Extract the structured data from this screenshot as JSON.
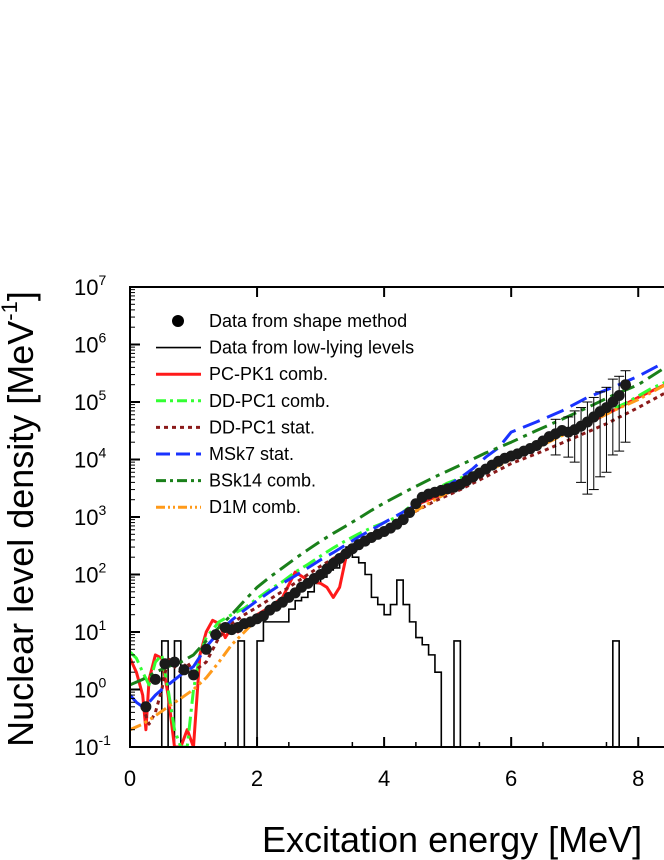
{
  "chart_data": {
    "type": "scatter",
    "title": "",
    "xlabel": "Excitation energy [MeV]",
    "ylabel": "Nuclear level density [MeV",
    "ylabel_sup": "-1",
    "ylabel_close": "]",
    "xlim": [
      0,
      8.5
    ],
    "ylim_exp": [
      -1,
      7
    ],
    "yscale": "log",
    "x_ticks": [
      {
        "v": 0,
        "label": "0"
      },
      {
        "v": 2,
        "label": "2"
      },
      {
        "v": 4,
        "label": "4"
      },
      {
        "v": 6,
        "label": "6"
      },
      {
        "v": 8,
        "label": "8"
      }
    ],
    "y_ticks": [
      {
        "e": -1,
        "base": "10",
        "exp": "-1"
      },
      {
        "e": 0,
        "base": "10",
        "exp": "0"
      },
      {
        "e": 1,
        "base": "10",
        "exp": "1"
      },
      {
        "e": 2,
        "base": "10",
        "exp": "2"
      },
      {
        "e": 3,
        "base": "10",
        "exp": "3"
      },
      {
        "e": 4,
        "base": "10",
        "exp": "4"
      },
      {
        "e": 5,
        "base": "10",
        "exp": "5"
      },
      {
        "e": 6,
        "base": "10",
        "exp": "6"
      },
      {
        "e": 7,
        "base": "10",
        "exp": "7"
      }
    ],
    "legend": {
      "position": "top-left",
      "entries": [
        {
          "label": "Data from shape method",
          "style": "marker",
          "color": "#000000"
        },
        {
          "label": "Data from low-lying levels",
          "style": "solid-thin",
          "color": "#000000"
        },
        {
          "label": "PC-PK1 comb.",
          "style": "solid",
          "color": "#ff1a1a"
        },
        {
          "label": "DD-PC1 comb.",
          "style": "dashdot",
          "color": "#33ff33"
        },
        {
          "label": "DD-PC1 stat.",
          "style": "dot",
          "color": "#8b1a1a"
        },
        {
          "label": "MSk7 stat.",
          "style": "dash",
          "color": "#1a33ff"
        },
        {
          "label": "BSk14 comb.",
          "style": "dashdot",
          "color": "#1a801a"
        },
        {
          "label": "D1M comb.",
          "style": "dashdotdot",
          "color": "#ff9a1a"
        }
      ]
    },
    "points": [
      {
        "x": 0.25,
        "y": 0.5
      },
      {
        "x": 0.4,
        "y": 1.5
      },
      {
        "x": 0.55,
        "y": 2.8
      },
      {
        "x": 0.7,
        "y": 3.0
      },
      {
        "x": 0.85,
        "y": 2.2
      },
      {
        "x": 1.0,
        "y": 1.8
      },
      {
        "x": 1.2,
        "y": 5
      },
      {
        "x": 1.35,
        "y": 9
      },
      {
        "x": 1.5,
        "y": 12
      },
      {
        "x": 1.6,
        "y": 11
      },
      {
        "x": 1.7,
        "y": 12
      },
      {
        "x": 1.8,
        "y": 14
      },
      {
        "x": 1.9,
        "y": 15
      },
      {
        "x": 2.0,
        "y": 17
      },
      {
        "x": 2.1,
        "y": 19
      },
      {
        "x": 2.2,
        "y": 24
      },
      {
        "x": 2.3,
        "y": 28
      },
      {
        "x": 2.4,
        "y": 33
      },
      {
        "x": 2.5,
        "y": 40
      },
      {
        "x": 2.6,
        "y": 48
      },
      {
        "x": 2.7,
        "y": 60
      },
      {
        "x": 2.8,
        "y": 70
      },
      {
        "x": 2.9,
        "y": 85
      },
      {
        "x": 3.0,
        "y": 100
      },
      {
        "x": 3.1,
        "y": 125
      },
      {
        "x": 3.2,
        "y": 155
      },
      {
        "x": 3.3,
        "y": 190
      },
      {
        "x": 3.4,
        "y": 230
      },
      {
        "x": 3.5,
        "y": 280
      },
      {
        "x": 3.6,
        "y": 330
      },
      {
        "x": 3.7,
        "y": 380
      },
      {
        "x": 3.8,
        "y": 440
      },
      {
        "x": 3.9,
        "y": 500
      },
      {
        "x": 4.0,
        "y": 560
      },
      {
        "x": 4.1,
        "y": 640
      },
      {
        "x": 4.2,
        "y": 750
      },
      {
        "x": 4.3,
        "y": 900
      },
      {
        "x": 4.4,
        "y": 1200
      },
      {
        "x": 4.5,
        "y": 1700
      },
      {
        "x": 4.6,
        "y": 2200
      },
      {
        "x": 4.7,
        "y": 2500
      },
      {
        "x": 4.8,
        "y": 2700
      },
      {
        "x": 4.9,
        "y": 2900
      },
      {
        "x": 5.0,
        "y": 3100
      },
      {
        "x": 5.1,
        "y": 3300
      },
      {
        "x": 5.2,
        "y": 3700
      },
      {
        "x": 5.3,
        "y": 4300
      },
      {
        "x": 5.4,
        "y": 5000
      },
      {
        "x": 5.5,
        "y": 5800
      },
      {
        "x": 5.6,
        "y": 6800
      },
      {
        "x": 5.7,
        "y": 8000
      },
      {
        "x": 5.8,
        "y": 9300
      },
      {
        "x": 5.9,
        "y": 10500
      },
      {
        "x": 6.0,
        "y": 11500
      },
      {
        "x": 6.1,
        "y": 12500
      },
      {
        "x": 6.2,
        "y": 14000
      },
      {
        "x": 6.3,
        "y": 15500
      },
      {
        "x": 6.4,
        "y": 17500
      },
      {
        "x": 6.5,
        "y": 21000
      },
      {
        "x": 6.6,
        "y": 25000
      },
      {
        "x": 6.7,
        "y": 28000
      },
      {
        "x": 6.8,
        "y": 32000
      },
      {
        "x": 6.9,
        "y": 30000
      },
      {
        "x": 7.0,
        "y": 33000
      },
      {
        "x": 7.1,
        "y": 38000
      },
      {
        "x": 7.2,
        "y": 45000
      },
      {
        "x": 7.3,
        "y": 55000
      },
      {
        "x": 7.4,
        "y": 68000
      },
      {
        "x": 7.5,
        "y": 80000
      },
      {
        "x": 7.6,
        "y": 100000
      },
      {
        "x": 7.7,
        "y": 130000
      },
      {
        "x": 7.8,
        "y": 200000
      }
    ],
    "errorbars": [
      {
        "x": 6.7,
        "lo": 12000,
        "hi": 50000
      },
      {
        "x": 6.9,
        "lo": 11000,
        "hi": 55000
      },
      {
        "x": 7.0,
        "lo": 9000,
        "hi": 70000
      },
      {
        "x": 7.1,
        "lo": 4000,
        "hi": 80000
      },
      {
        "x": 7.2,
        "lo": 2500,
        "hi": 100000
      },
      {
        "x": 7.3,
        "lo": 3000,
        "hi": 120000
      },
      {
        "x": 7.4,
        "lo": 5000,
        "hi": 150000
      },
      {
        "x": 7.5,
        "lo": 6000,
        "hi": 180000
      },
      {
        "x": 7.6,
        "lo": 12000,
        "hi": 250000
      },
      {
        "x": 7.7,
        "lo": 14000,
        "hi": 280000
      },
      {
        "x": 7.8,
        "lo": 20000,
        "hi": 350000
      }
    ],
    "histogram": {
      "label": "Data from low-lying levels",
      "bin_width": 0.1,
      "x_start": 0.0,
      "values": [
        0.1,
        0.1,
        0.1,
        0.1,
        0.1,
        7,
        0.1,
        7,
        0.1,
        0.1,
        0.1,
        0.1,
        0.1,
        0.1,
        0.1,
        0.1,
        0.1,
        7,
        0.1,
        0.1,
        7,
        15,
        15,
        15,
        15,
        25,
        35,
        40,
        50,
        70,
        90,
        120,
        130,
        180,
        300,
        200,
        160,
        100,
        40,
        30,
        20,
        30,
        80,
        30,
        15,
        8,
        6,
        4,
        2,
        0.1,
        0.1,
        7,
        0.1,
        0.1,
        0.1,
        0.1,
        0.1,
        0.1,
        0.1,
        0.1,
        0.1,
        0.1,
        0.1,
        0.1,
        0.1,
        0.1,
        0.1,
        0.1,
        0.1,
        0.1,
        0.1,
        0.1,
        0.1,
        0.1,
        0.1,
        0.1,
        7,
        0.1,
        0.1,
        0.1
      ]
    },
    "series": [
      {
        "name": "PC-PK1 comb.",
        "color": "#ff1a1a",
        "dash": "",
        "width": 3,
        "x": [
          0.0,
          0.1,
          0.2,
          0.25,
          0.3,
          0.4,
          0.5,
          0.6,
          0.7,
          0.8,
          0.9,
          1.0,
          1.1,
          1.2,
          1.3,
          1.4,
          1.5,
          1.6,
          1.7,
          1.8,
          2.0,
          2.2,
          2.4,
          2.6,
          2.8,
          3.0,
          3.1,
          3.2,
          3.3,
          3.4,
          3.6,
          3.8,
          4.0,
          4.2,
          4.3,
          4.4,
          4.6,
          4.8,
          5.0,
          5.2,
          5.4,
          5.6,
          5.8,
          6.0,
          6.4,
          6.8,
          7.2,
          7.6,
          8.0,
          8.5
        ],
        "y": [
          3.5,
          2.0,
          0.8,
          0.2,
          1.5,
          4.0,
          3.5,
          0.8,
          0.1,
          0.1,
          0.2,
          0.1,
          4.0,
          10,
          16,
          14,
          8,
          12,
          10,
          13,
          20,
          27,
          40,
          110,
          80,
          70,
          60,
          40,
          60,
          200,
          330,
          430,
          550,
          680,
          1000,
          1300,
          1800,
          2200,
          2600,
          3500,
          5000,
          7000,
          9500,
          11500,
          17500,
          27000,
          42000,
          70000,
          120000,
          220000
        ]
      },
      {
        "name": "DD-PC1 comb.",
        "color": "#33ff33",
        "dash": "14 5 3 5",
        "width": 3,
        "x": [
          0.0,
          0.1,
          0.2,
          0.3,
          0.4,
          0.5,
          0.6,
          0.7,
          0.8,
          0.9,
          1.0,
          1.1,
          1.2,
          1.4,
          1.6,
          1.8,
          2.0,
          2.2,
          2.4,
          2.6,
          2.8,
          3.0,
          3.2,
          3.4,
          3.6,
          3.8,
          4.0,
          4.2,
          4.4,
          4.6,
          4.8,
          5.0,
          5.4,
          5.8,
          6.2,
          6.6,
          7.0,
          7.4,
          7.8,
          8.2,
          8.5
        ],
        "y": [
          4.5,
          3.5,
          2.0,
          1.2,
          3.0,
          4.0,
          1.0,
          0.2,
          0.1,
          0.1,
          1.0,
          4.0,
          8.0,
          15,
          20,
          26,
          38,
          55,
          75,
          110,
          150,
          210,
          290,
          390,
          510,
          650,
          800,
          1000,
          1500,
          2200,
          3000,
          3900,
          5800,
          9000,
          14000,
          21000,
          35000,
          60000,
          95000,
          170000,
          240000
        ]
      },
      {
        "name": "DD-PC1 stat.",
        "color": "#8b1a1a",
        "dash": "4 4",
        "width": 3,
        "x": [
          0.2,
          0.3,
          0.4,
          0.5,
          0.6,
          0.7,
          0.8,
          0.9,
          1.0,
          1.1,
          1.2,
          1.4,
          1.6,
          1.8,
          2.0,
          2.2,
          2.5,
          2.8,
          3.0,
          3.3,
          3.6,
          4.0,
          4.4,
          4.8,
          5.2,
          5.6,
          6.0,
          6.5,
          7.0,
          7.5,
          8.0,
          8.5
        ],
        "y": [
          0.5,
          0.25,
          0.4,
          1.0,
          3.5,
          2.5,
          2.0,
          3.0,
          2.0,
          2.5,
          3.0,
          8,
          14,
          20,
          27,
          37,
          60,
          100,
          140,
          220,
          380,
          650,
          1100,
          1900,
          3000,
          5000,
          8500,
          14000,
          24000,
          42000,
          80000,
          160000
        ]
      },
      {
        "name": "MSk7 stat.",
        "color": "#1a33ff",
        "dash": "18 8",
        "width": 3,
        "x": [
          0.0,
          0.1,
          0.2,
          0.3,
          0.4,
          0.5,
          0.6,
          0.8,
          1.0,
          1.2,
          1.4,
          1.6,
          1.8,
          2.0,
          2.2,
          2.4,
          2.6,
          2.8,
          3.0,
          3.2,
          3.4,
          3.6,
          3.8,
          4.0,
          4.4,
          4.8,
          5.2,
          5.4,
          5.6,
          5.8,
          6.0,
          6.4,
          6.8,
          7.2,
          7.6,
          8.0,
          8.5
        ],
        "y": [
          0.8,
          0.6,
          0.5,
          0.6,
          0.8,
          1.0,
          1.2,
          1.8,
          2.5,
          5.5,
          10,
          16,
          24,
          35,
          50,
          70,
          95,
          130,
          180,
          240,
          330,
          450,
          600,
          800,
          1400,
          2600,
          4800,
          7000,
          11000,
          16000,
          30000,
          45000,
          70000,
          120000,
          180000,
          280000,
          550000
        ]
      },
      {
        "name": "BSk14 comb.",
        "color": "#1a801a",
        "dash": "16 6 4 6",
        "width": 3,
        "x": [
          0.0,
          0.2,
          0.4,
          0.6,
          0.8,
          1.0,
          1.2,
          1.4,
          1.6,
          1.8,
          2.0,
          2.2,
          2.4,
          2.6,
          2.8,
          3.0,
          3.2,
          3.4,
          3.6,
          3.8,
          4.0,
          4.4,
          4.8,
          5.2,
          5.6,
          6.0,
          6.4,
          6.8,
          7.2,
          7.6,
          8.0,
          8.5
        ],
        "y": [
          1.2,
          1.5,
          2.0,
          2.5,
          3.0,
          4.0,
          7,
          12,
          20,
          35,
          60,
          90,
          130,
          190,
          270,
          380,
          520,
          700,
          950,
          1300,
          1750,
          3000,
          5000,
          8000,
          13000,
          20000,
          32000,
          50000,
          80000,
          130000,
          200000,
          450000
        ]
      },
      {
        "name": "D1M comb.",
        "color": "#ff9a1a",
        "dash": "12 4 3 4 3 4",
        "width": 3,
        "x": [
          0.0,
          0.2,
          0.4,
          0.6,
          0.8,
          1.0,
          1.2,
          1.4,
          1.6,
          1.8,
          2.0,
          2.2,
          2.4,
          2.6,
          2.8,
          3.0,
          3.2,
          3.4,
          3.6,
          3.8,
          4.0,
          4.4,
          4.8,
          5.2,
          5.6,
          6.0,
          6.4,
          6.8,
          7.2,
          7.6,
          8.0,
          8.5
        ],
        "y": [
          0.2,
          0.25,
          0.35,
          0.5,
          0.7,
          1.0,
          1.6,
          3.0,
          6.0,
          10,
          17,
          26,
          38,
          55,
          80,
          110,
          160,
          230,
          320,
          440,
          600,
          1100,
          2000,
          3500,
          6000,
          10000,
          16000,
          26000,
          42000,
          70000,
          110000,
          220000
        ]
      }
    ]
  }
}
